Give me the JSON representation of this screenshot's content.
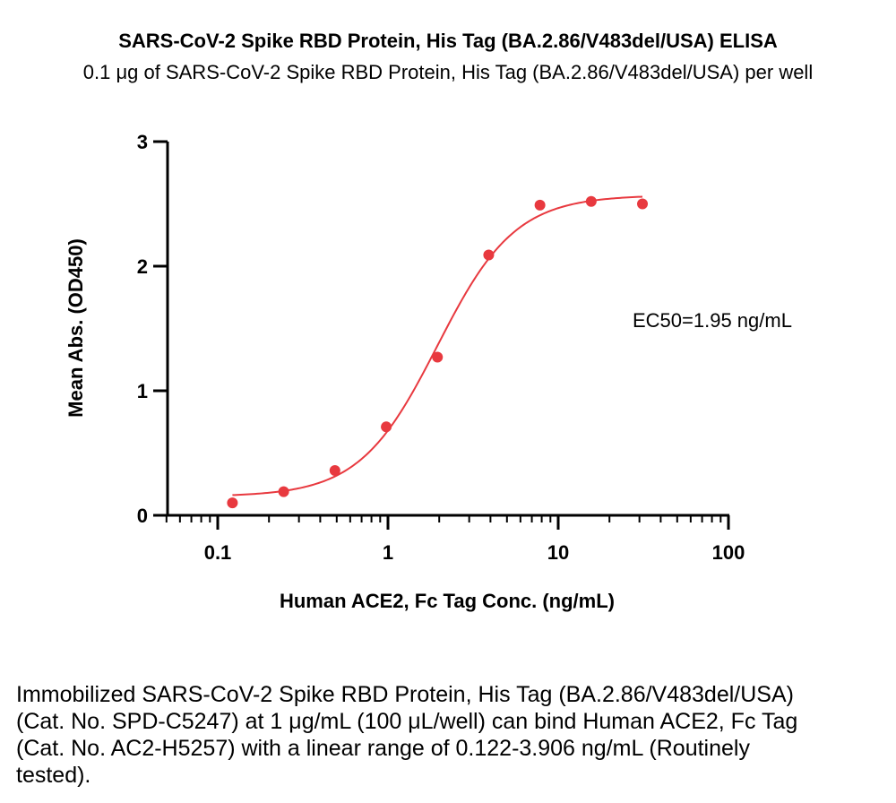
{
  "chart_data": {
    "type": "scatter",
    "title": "SARS-CoV-2 Spike RBD Protein, His Tag (BA.2.86/V483del/USA) ELISA",
    "subtitle": "0.1 μg of SARS-CoV-2 Spike RBD Protein, His Tag (BA.2.86/V483del/USA) per well",
    "xlabel": "Human ACE2, Fc Tag Conc. (ng/mL)",
    "ylabel": "Mean Abs. (OD450)",
    "xscale": "log",
    "xlim": [
      0.05,
      100
    ],
    "ylim": [
      0,
      3
    ],
    "xticks": [
      {
        "value": 0.1,
        "label": "0.1"
      },
      {
        "value": 1,
        "label": "1"
      },
      {
        "value": 10,
        "label": "10"
      },
      {
        "value": 100,
        "label": "100"
      }
    ],
    "yticks": [
      {
        "value": 0,
        "label": "0"
      },
      {
        "value": 1,
        "label": "1"
      },
      {
        "value": 2,
        "label": "2"
      },
      {
        "value": 3,
        "label": "3"
      }
    ],
    "series": [
      {
        "color": "#e8393f",
        "x": [
          0.122,
          0.244,
          0.488,
          0.977,
          1.953,
          3.906,
          7.813,
          15.625,
          31.25
        ],
        "y": [
          0.1,
          0.19,
          0.36,
          0.71,
          1.27,
          2.09,
          2.49,
          2.52,
          2.5
        ]
      }
    ],
    "fit": {
      "type": "4PL",
      "bottom": 0.15,
      "top": 2.57,
      "ec50": 1.95,
      "hill": 1.9,
      "color": "#e8393f"
    },
    "annotation": "EC50=1.95 ng/mL",
    "grid": false,
    "legend": "none"
  },
  "caption": "Immobilized SARS-CoV-2 Spike RBD Protein, His Tag (BA.2.86/V483del/USA) (Cat. No. SPD-C5247) at 1 μg/mL (100 μL/well) can bind Human ACE2, Fc Tag (Cat. No. AC2-H5257) with a linear range of 0.122-3.906 ng/mL (Routinely tested)."
}
